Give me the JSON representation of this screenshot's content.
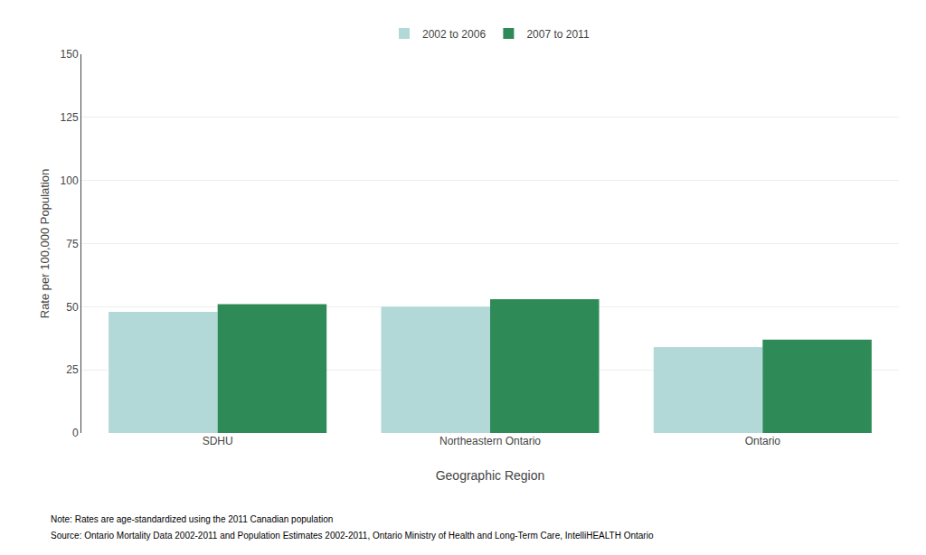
{
  "chart_data": {
    "type": "bar",
    "categories": [
      "SDHU",
      "Northeastern Ontario",
      "Ontario"
    ],
    "series": [
      {
        "name": "2002 to 2006",
        "color": "#b2d8d8",
        "values": [
          48,
          50,
          34
        ]
      },
      {
        "name": "2007 to 2011",
        "color": "#2e8b57",
        "values": [
          51,
          53,
          37
        ]
      }
    ],
    "xlabel": "Geographic Region",
    "ylabel": "Rate per 100,000 Population",
    "ylim": [
      0,
      150
    ],
    "yticks": [
      0,
      25,
      50,
      75,
      100,
      125,
      150
    ],
    "grid": true,
    "legend": "top",
    "annotations": [
      "Note: Rates are age-standardized using the 2011 Canadian population",
      "Source: Ontario Mortality Data 2002-2011 and Population Estimates 2002-2011, Ontario Ministry of Health and Long-Term Care, IntelliHEALTH Ontario"
    ]
  }
}
